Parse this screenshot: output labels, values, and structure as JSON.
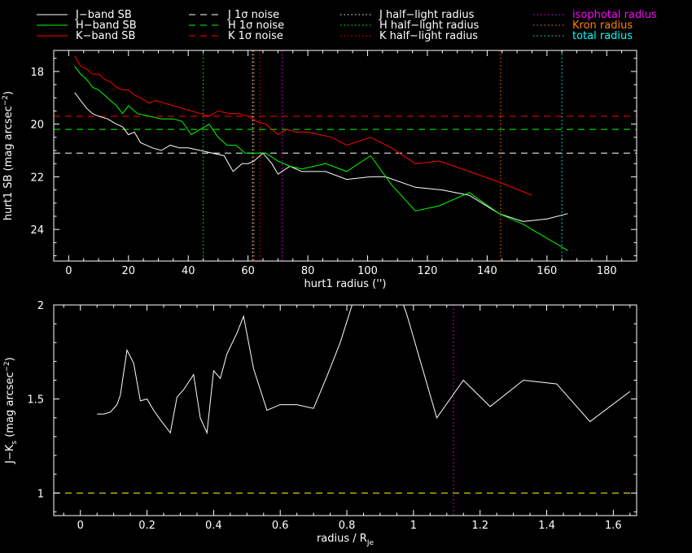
{
  "colors": {
    "J": "#ffffff",
    "H": "#00ff00",
    "K": "#ff0000",
    "iso": "#ff00ff",
    "kron": "#ff8000",
    "total": "#00ffff",
    "ratio_ref": "#ffff00"
  },
  "legend": [
    {
      "label": "J−band SB",
      "color": "#ffffff",
      "style": "solid"
    },
    {
      "label": "H−band SB",
      "color": "#00ff00",
      "style": "solid"
    },
    {
      "label": "K−band SB",
      "color": "#ff0000",
      "style": "solid"
    },
    {
      "label": "J 1σ noise",
      "color": "#ffffff",
      "style": "dashed"
    },
    {
      "label": "H 1σ noise",
      "color": "#00ff00",
      "style": "dashed"
    },
    {
      "label": "K 1σ noise",
      "color": "#ff0000",
      "style": "dashed"
    },
    {
      "label": "J half−light radius",
      "color": "#ffffff",
      "style": "dotted"
    },
    {
      "label": "H half−light radius",
      "color": "#00ff00",
      "style": "dotted"
    },
    {
      "label": "K half−light radius",
      "color": "#ff0000",
      "style": "dotted"
    },
    {
      "label": "isophotal radius",
      "color": "#ff00ff",
      "style": "dotted"
    },
    {
      "label": "Kron radius",
      "color": "#ff8000",
      "style": "dotted"
    },
    {
      "label": "total radius",
      "color": "#00ffff",
      "style": "dotted"
    }
  ],
  "chart_data": [
    {
      "type": "line",
      "xlabel": "hurt1 radius ('')",
      "ylabel": "hurt1 SB (mag arcsec",
      "ylabel_sup": "−2",
      "ylabel_close": ")",
      "xlim": [
        -5,
        190
      ],
      "ylim": [
        25.2,
        17.2
      ],
      "xticks": [
        0,
        20,
        40,
        60,
        80,
        100,
        120,
        140,
        160,
        180
      ],
      "yticks": [
        18,
        20,
        22,
        24
      ],
      "series": [
        {
          "name": "J−band SB",
          "color": "#ffffff",
          "x": [
            2,
            4,
            6,
            8,
            10,
            13,
            16,
            18,
            20,
            22,
            24,
            28,
            31,
            34,
            37,
            40,
            44,
            48,
            52,
            55,
            58,
            60,
            62,
            65,
            68,
            70,
            74,
            78,
            82,
            86,
            93,
            101,
            106,
            116,
            125,
            134,
            144,
            152,
            160,
            167
          ],
          "y": [
            18.8,
            19.1,
            19.4,
            19.6,
            19.7,
            19.8,
            20.0,
            20.1,
            20.4,
            20.3,
            20.7,
            20.9,
            21.0,
            20.8,
            20.9,
            20.9,
            21.0,
            21.1,
            21.2,
            21.8,
            21.5,
            21.5,
            21.4,
            21.1,
            21.5,
            21.9,
            21.6,
            21.8,
            21.8,
            21.8,
            22.1,
            22.0,
            22.0,
            22.4,
            22.5,
            22.7,
            23.4,
            23.7,
            23.6,
            23.4
          ]
        },
        {
          "name": "H−band SB",
          "color": "#00ff00",
          "x": [
            2,
            4,
            6,
            8,
            10,
            13,
            16,
            18,
            20,
            23,
            27,
            31,
            35,
            38,
            41,
            44,
            47,
            50,
            53,
            56,
            59,
            62,
            66,
            70,
            74,
            78,
            82,
            86,
            93,
            101,
            108,
            116,
            124,
            134,
            144,
            152,
            167
          ],
          "y": [
            17.8,
            18.1,
            18.3,
            18.6,
            18.7,
            19.0,
            19.3,
            19.6,
            19.3,
            19.6,
            19.7,
            19.8,
            19.8,
            19.9,
            20.4,
            20.2,
            20.0,
            20.5,
            20.8,
            20.8,
            21.1,
            21.1,
            21.1,
            21.4,
            21.6,
            21.7,
            21.6,
            21.5,
            21.8,
            21.2,
            22.3,
            23.3,
            23.1,
            22.6,
            23.4,
            23.8,
            24.8
          ]
        },
        {
          "name": "K−band SB",
          "color": "#ff0000",
          "x": [
            2,
            4,
            6,
            8,
            10,
            12,
            14,
            16,
            18,
            20,
            22,
            24,
            27,
            29,
            32,
            35,
            38,
            41,
            44,
            47,
            50,
            54,
            57,
            60,
            63,
            66,
            70,
            73,
            76,
            80,
            84,
            88,
            93,
            101,
            108,
            116,
            124,
            134,
            144,
            155
          ],
          "y": [
            17.4,
            17.8,
            17.9,
            18.1,
            18.1,
            18.3,
            18.4,
            18.6,
            18.7,
            18.7,
            18.9,
            19.0,
            19.2,
            19.1,
            19.2,
            19.3,
            19.4,
            19.5,
            19.6,
            19.7,
            19.5,
            19.6,
            19.6,
            19.7,
            19.9,
            20.0,
            20.4,
            20.2,
            20.3,
            20.3,
            20.4,
            20.5,
            20.8,
            20.5,
            20.9,
            21.5,
            21.4,
            21.8,
            22.2,
            22.7
          ]
        }
      ],
      "hlines": [
        {
          "name": "J 1σ noise",
          "y": 21.1,
          "color": "#ffffff",
          "style": "dashed"
        },
        {
          "name": "H 1σ noise",
          "y": 20.2,
          "color": "#00ff00",
          "style": "dashed"
        },
        {
          "name": "K 1σ noise",
          "y": 19.7,
          "color": "#ff0000",
          "style": "dashed"
        }
      ],
      "vlines": [
        {
          "name": "H half−light radius",
          "x": 45,
          "color": "#00ff00"
        },
        {
          "name": "J half−light radius",
          "x": 61.5,
          "color": "#ffffff"
        },
        {
          "name": "Kron radius",
          "x": 62,
          "color": "#ff8000"
        },
        {
          "name": "K half−light radius",
          "x": 64,
          "color": "#ff0000"
        },
        {
          "name": "isophotal radius",
          "x": 71.5,
          "color": "#ff00ff"
        },
        {
          "name": "Kron radius",
          "x": 144.5,
          "color": "#ff8000"
        },
        {
          "name": "total radius",
          "x": 165,
          "color": "#00ffff"
        }
      ]
    },
    {
      "type": "line",
      "xlabel": "radius / R",
      "xlabel_sub": "Je",
      "ylabel": "J−K",
      "ylabel_sub": "s",
      "ylabel_mid": " (mag arcsec",
      "ylabel_sup": "−2",
      "ylabel_close": ")",
      "xlim": [
        -0.08,
        1.67
      ],
      "ylim": [
        0.88,
        2
      ],
      "xticks": [
        0,
        0.2,
        0.4,
        0.6,
        0.8,
        1,
        1.2,
        1.4,
        1.6
      ],
      "ytick_labels": [
        {
          "v": 1,
          "t": "1"
        },
        {
          "v": 1.5,
          "t": "1.5"
        },
        {
          "v": 2,
          "t": "2"
        }
      ],
      "series": [
        {
          "name": "J−K",
          "color": "#ffffff",
          "x": [
            0.05,
            0.07,
            0.09,
            0.11,
            0.12,
            0.14,
            0.16,
            0.18,
            0.2,
            0.22,
            0.24,
            0.27,
            0.29,
            0.31,
            0.34,
            0.36,
            0.38,
            0.4,
            0.42,
            0.44,
            0.47,
            0.49,
            0.52,
            0.56,
            0.6,
            0.65,
            0.7,
            0.74,
            0.78,
            0.83,
            0.88,
            0.9,
            0.95,
            0.98,
            1.07,
            1.15,
            1.23,
            1.33,
            1.43,
            1.53,
            1.65
          ],
          "y": [
            1.42,
            1.42,
            1.43,
            1.47,
            1.52,
            1.76,
            1.69,
            1.49,
            1.5,
            1.44,
            1.39,
            1.32,
            1.51,
            1.55,
            1.63,
            1.4,
            1.32,
            1.65,
            1.61,
            1.74,
            1.85,
            1.94,
            1.66,
            1.44,
            1.47,
            1.47,
            1.45,
            1.62,
            1.8,
            2.08,
            2.08,
            2.08,
            2.1,
            1.95,
            1.4,
            1.6,
            1.46,
            1.6,
            1.58,
            1.38,
            1.54
          ]
        }
      ],
      "hlines": [
        {
          "name": "ratio reference",
          "y": 1,
          "color": "#ffff00",
          "style": "dashed"
        }
      ],
      "vlines": [
        {
          "name": "isophotal radius",
          "x": 1.12,
          "color": "#ff00ff"
        }
      ]
    }
  ]
}
